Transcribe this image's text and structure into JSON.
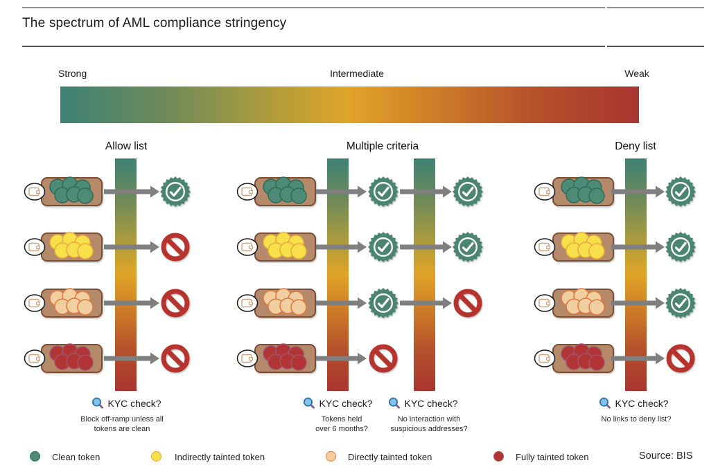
{
  "title": "The spectrum of AML compliance stringency",
  "source": "Source: BIS",
  "spectrum": {
    "strong": "Strong",
    "intermediate": "Intermediate",
    "weak": "Weak",
    "gradient": [
      "#3E8274",
      "#6E8A59",
      "#AE9C3C",
      "#E0A428",
      "#CC7A28",
      "#B5512B",
      "#A93530"
    ]
  },
  "tokens": [
    {
      "id": "clean",
      "legend_label": "Clean token",
      "fill": "#4E8B76",
      "stroke": "#2F6B57"
    },
    {
      "id": "indirectly-tainted",
      "legend_label": "Indirectly tainted token",
      "fill": "#F8E04B",
      "stroke": "#E8A93E"
    },
    {
      "id": "directly-tainted",
      "legend_label": "Directly tainted token",
      "fill": "#F2CFA0",
      "stroke": "#E0773F"
    },
    {
      "id": "fully-tainted",
      "legend_label": "Fully tainted token",
      "fill": "#B23636",
      "stroke": "#A05568"
    }
  ],
  "sections": [
    {
      "id": "allow-list",
      "label": "Allow list",
      "criteria": [
        {
          "kyc_label": "KYC check?",
          "description": [
            "Block off-ramp unless all",
            "tokens are clean"
          ]
        }
      ],
      "outcomes": [
        [
          "check"
        ],
        [
          "deny"
        ],
        [
          "deny"
        ],
        [
          "deny"
        ]
      ]
    },
    {
      "id": "multiple-criteria",
      "label": "Multiple criteria",
      "criteria": [
        {
          "kyc_label": "KYC check?",
          "description": [
            "Tokens held",
            "over 6 months?"
          ]
        },
        {
          "kyc_label": "KYC check?",
          "description": [
            "No interaction with",
            "suspicious addresses?"
          ]
        }
      ],
      "outcomes": [
        [
          "check",
          "check"
        ],
        [
          "check",
          "check"
        ],
        [
          "check",
          "deny"
        ],
        [
          "deny"
        ]
      ]
    },
    {
      "id": "deny-list",
      "label": "Deny list",
      "criteria": [
        {
          "kyc_label": "KYC check?",
          "description": [
            "No links to deny list?"
          ]
        }
      ],
      "outcomes": [
        [
          "check"
        ],
        [
          "check"
        ],
        [
          "check"
        ],
        [
          "deny"
        ]
      ]
    }
  ],
  "colors": {
    "approve_seal": "#4C8571",
    "reject_sign": "#B5342F",
    "arrow": "#7F7F7F",
    "tray_fill": "#B48A6A",
    "tray_stroke": "#7D4E31",
    "wallet_glyph": "#C9A27D",
    "magnifier_lens": "#7EC3E8",
    "magnifier_rim": "#2E6FA8",
    "magnifier_handle": "#8A56A0",
    "rule_top": "#8F8F8F",
    "rule_title": "#4D4D4D"
  }
}
